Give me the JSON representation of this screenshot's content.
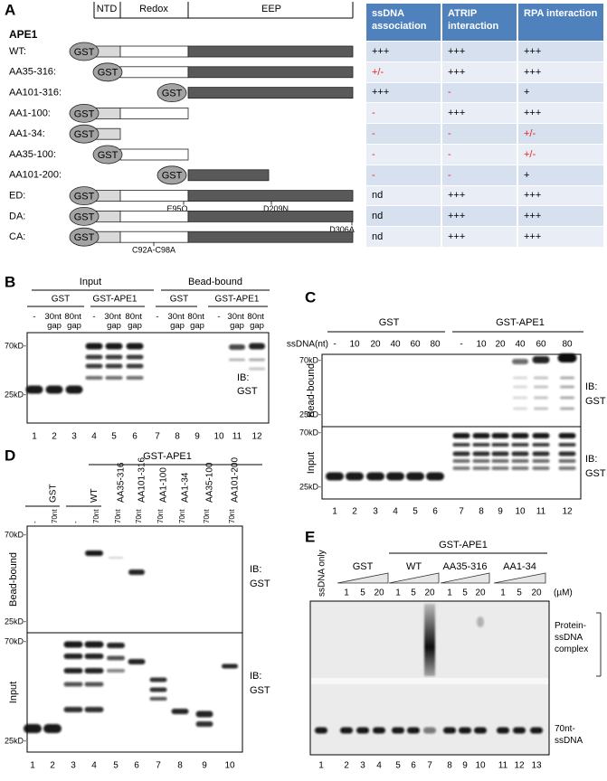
{
  "panel_a": {
    "letter": "A",
    "protein": "APE1",
    "domains": [
      "NTD",
      "Redox",
      "EEP"
    ],
    "tag": "GST",
    "constructs": [
      {
        "label": "WT:",
        "mutations": []
      },
      {
        "label": "AA35-316:",
        "mutations": []
      },
      {
        "label": "AA101-316:",
        "mutations": []
      },
      {
        "label": "AA1-100:",
        "mutations": []
      },
      {
        "label": "AA1-34:",
        "mutations": []
      },
      {
        "label": "AA35-100:",
        "mutations": []
      },
      {
        "label": "AA101-200:",
        "mutations": []
      },
      {
        "label": "ED:",
        "mutations": [
          "E95Q",
          "D209N"
        ]
      },
      {
        "label": "DA:",
        "mutations": [
          "D306A"
        ]
      },
      {
        "label": "CA:",
        "mutations": [
          "C92A-C98A"
        ]
      }
    ],
    "table": {
      "header_color": "#4f81bd",
      "headers": [
        "ssDNA association",
        "ATRIP interaction",
        "RPA interaction"
      ],
      "rows": [
        [
          {
            "text": "+++",
            "color": "#000000"
          },
          {
            "text": "+++",
            "color": "#000000"
          },
          {
            "text": "+++",
            "color": "#000000"
          }
        ],
        [
          {
            "text": "+/-",
            "color": "#e8231f"
          },
          {
            "text": "+++",
            "color": "#000000"
          },
          {
            "text": "+++",
            "color": "#000000"
          }
        ],
        [
          {
            "text": "+++",
            "color": "#000000"
          },
          {
            "text": "-",
            "color": "#e8231f"
          },
          {
            "text": "+",
            "color": "#000000"
          }
        ],
        [
          {
            "text": "-",
            "color": "#e8231f"
          },
          {
            "text": "+++",
            "color": "#000000"
          },
          {
            "text": "+++",
            "color": "#000000"
          }
        ],
        [
          {
            "text": "-",
            "color": "#e8231f"
          },
          {
            "text": "-",
            "color": "#e8231f"
          },
          {
            "text": "+/-",
            "color": "#e8231f"
          }
        ],
        [
          {
            "text": "-",
            "color": "#e8231f"
          },
          {
            "text": "-",
            "color": "#e8231f"
          },
          {
            "text": "+/-",
            "color": "#e8231f"
          }
        ],
        [
          {
            "text": "-",
            "color": "#e8231f"
          },
          {
            "text": "-",
            "color": "#e8231f"
          },
          {
            "text": "+",
            "color": "#000000"
          }
        ],
        [
          {
            "text": "nd",
            "color": "#000000"
          },
          {
            "text": "+++",
            "color": "#000000"
          },
          {
            "text": "+++",
            "color": "#000000"
          }
        ],
        [
          {
            "text": "nd",
            "color": "#000000"
          },
          {
            "text": "+++",
            "color": "#000000"
          },
          {
            "text": "+++",
            "color": "#000000"
          }
        ],
        [
          {
            "text": "nd",
            "color": "#000000"
          },
          {
            "text": "+++",
            "color": "#000000"
          },
          {
            "text": "+++",
            "color": "#000000"
          }
        ]
      ]
    }
  },
  "panel_b": {
    "letter": "B",
    "groups": [
      "Input",
      "Bead-bound"
    ],
    "subgroups": [
      "GST",
      "GST-APE1",
      "GST",
      "GST-APE1"
    ],
    "lane_headers": [
      "-",
      "30nt gap",
      "80nt gap",
      "-",
      "30nt gap",
      "80nt gap",
      "-",
      "30nt gap",
      "80nt gap",
      "-",
      "30nt gap",
      "80nt gap"
    ],
    "markers": [
      "70kD-",
      "25kD-"
    ],
    "antibody": "IB: GST",
    "lanes": [
      1,
      2,
      3,
      4,
      5,
      6,
      7,
      8,
      9,
      10,
      11,
      12
    ]
  },
  "panel_c": {
    "letter": "C",
    "groups": [
      "GST",
      "GST-APE1"
    ],
    "axis_label": "ssDNA(nt)",
    "lengths": [
      "-",
      10,
      20,
      40,
      60,
      80,
      "-",
      10,
      20,
      40,
      60,
      80
    ],
    "blots": [
      {
        "label": "Bead-bound",
        "markers": [
          "70kD-",
          "25kD-"
        ],
        "antibody": "IB: GST"
      },
      {
        "label": "Input",
        "markers": [
          "70kD-",
          "25kD-"
        ],
        "antibody": "IB: GST"
      }
    ],
    "lanes": [
      1,
      2,
      3,
      4,
      5,
      6,
      7,
      8,
      9,
      10,
      11,
      12
    ]
  },
  "panel_d": {
    "letter": "D",
    "group": "GST-APE1",
    "samples": [
      "GST",
      "WT",
      "AA35-316",
      "AA101-316",
      "AA1-100",
      "AA1-34",
      "AA35-100",
      "AA101-200"
    ],
    "ssdna": [
      "-",
      "70nt",
      "-",
      "70nt",
      "70nt",
      "70nt",
      "70nt",
      "70nt",
      "70nt",
      "70nt"
    ],
    "blots": [
      {
        "label": "Bead-bound",
        "markers": [
          "70kD-",
          "25kD-"
        ],
        "antibody": "IB: GST"
      },
      {
        "label": "Input",
        "markers": [
          "70kD-",
          "25kD-"
        ],
        "antibody": "IB: GST"
      }
    ],
    "lanes": [
      1,
      2,
      3,
      4,
      5,
      6,
      7,
      8,
      9,
      10
    ]
  },
  "panel_e": {
    "letter": "E",
    "control": "ssDNA only",
    "group": "GST-APE1",
    "samples": [
      "GST",
      "WT",
      "AA35-316",
      "AA1-34"
    ],
    "concentrations": [
      1,
      5,
      20,
      1,
      5,
      20,
      1,
      5,
      20,
      1,
      5,
      20
    ],
    "unit": "(µM)",
    "annotations": [
      "Protein-ssDNA complex",
      "70nt-ssDNA"
    ],
    "lanes": [
      1,
      2,
      3,
      4,
      5,
      6,
      7,
      8,
      9,
      10,
      11,
      12,
      13
    ]
  }
}
